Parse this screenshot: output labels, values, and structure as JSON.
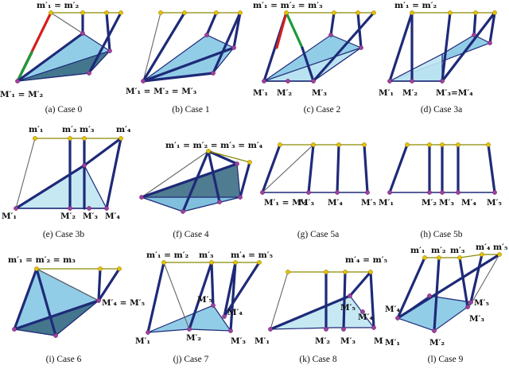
{
  "colors": {
    "top_bar": "#8b8b00",
    "vertex_top": "#e6c200",
    "vertex_bottom": "#a040a0",
    "strut_thick": "#1e2a78",
    "strut_thin": "#666666",
    "plane_light": "#bfe6f2",
    "plane_mid": "#86c8e4",
    "plane_dark": "#3c6e84",
    "highlight_red": "#d42020",
    "highlight_green": "#1a9a3a"
  },
  "panels": [
    {
      "caption": "(a) Case 0",
      "labels": [
        "m′₁ = m′₂",
        "M′₁ = M′₂"
      ]
    },
    {
      "caption": "(b) Case 1",
      "labels": [
        "M′₁ = M′₂ = M′₃"
      ]
    },
    {
      "caption": "(c) Case 2",
      "labels": [
        "m′₁ = m′₂ = m′₃",
        "M′₁",
        "M′₂",
        "M′₃"
      ]
    },
    {
      "caption": "(d) Case 3a",
      "labels": [
        "m′₁ = m′₂",
        "M′₁",
        "M′₂",
        "M′₃=M′₄"
      ]
    },
    {
      "caption": "(e) Case 3b",
      "labels": [
        "m′₁",
        "m′₂",
        "m′₃",
        "m′₄",
        "M′₁",
        "M′₂",
        "M′₃",
        "M′₄"
      ]
    },
    {
      "caption": "(f) Case 4",
      "labels": [
        "m′₁ = m′₂ = m′₃ = m′₄"
      ]
    },
    {
      "caption": "(g) Case 5a",
      "labels": [
        "M′₁ = M′₂",
        "M′₃",
        "M′₄",
        "M′₅"
      ]
    },
    {
      "caption": "(h) Case 5b",
      "labels": [
        "M′₁",
        "M′₂",
        "M′₃",
        "M′₄",
        "M′₅"
      ]
    },
    {
      "caption": "(i) Case 6",
      "labels": [
        "m′₁ = m′₂ = m₃",
        "M′₄ = M′₅"
      ]
    },
    {
      "caption": "(j) Case 7",
      "labels": [
        "m′₁ = m′₂",
        "m′₃",
        "m′₄ = m′₅",
        "M′₅",
        "M′₄",
        "M′₁",
        "M′₂",
        "M′₃"
      ]
    },
    {
      "caption": "(k) Case 8",
      "labels": [
        "m′₄ = m′₅",
        "M′₅",
        "M′₄",
        "M′₁",
        "M′₂",
        "M′₃",
        "M"
      ]
    },
    {
      "caption": "(l) Case 9",
      "labels": [
        "m′₁",
        "m′₂",
        "m′₃",
        "m′₄",
        "m′₅",
        "M′₄",
        "M′₅",
        "M′₃",
        "M′₁",
        "M′₂"
      ]
    }
  ]
}
